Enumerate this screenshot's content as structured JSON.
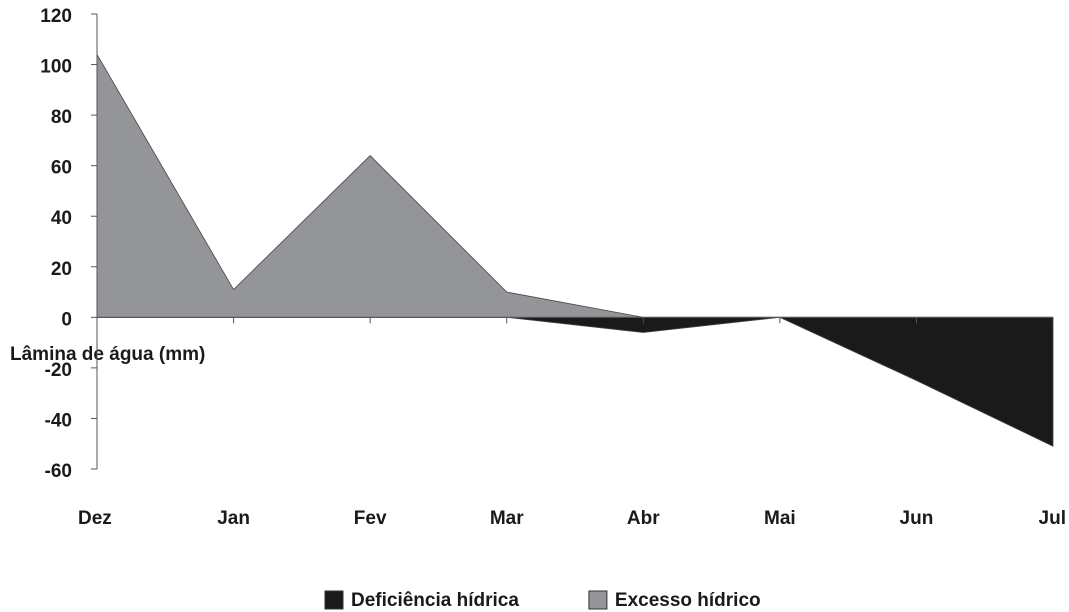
{
  "chart_data": {
    "type": "area",
    "y_label": "Lâmina de água (mm)",
    "categories": [
      "Dez",
      "Jan",
      "Fev",
      "Mar",
      "Abr",
      "Mai",
      "Jun",
      "Jul"
    ],
    "series": [
      {
        "name": "Deficiência hídrica",
        "color": "#1a1a1a",
        "values": [
          0,
          0,
          0,
          0,
          -6,
          0,
          -25,
          -51
        ]
      },
      {
        "name": "Excesso hídrico",
        "color": "#939598",
        "values": [
          104,
          11,
          64,
          10,
          0,
          0,
          0,
          0
        ]
      }
    ],
    "ylim": [
      -60,
      120
    ],
    "yticks": [
      -60,
      -40,
      -20,
      0,
      20,
      40,
      60,
      80,
      100,
      120
    ],
    "legend": "bottom"
  }
}
